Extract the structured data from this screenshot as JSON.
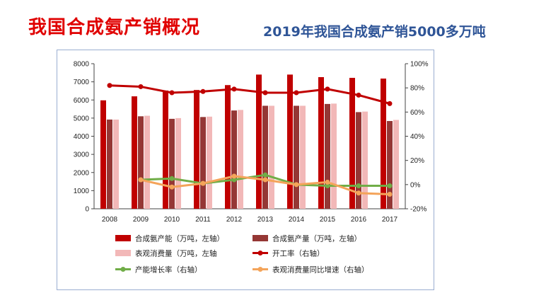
{
  "slide": {
    "title": "我国合成氨产销概况",
    "subtitle": "2019年我国合成氨产销5000多万吨"
  },
  "colors": {
    "capacity": "#c00000",
    "production": "#953735",
    "consumption": "#f2b8b8",
    "utilization": "#c00000",
    "capacity_growth": "#70ad47",
    "consumption_growth": "#f4a45a",
    "title": "#e00000",
    "subtitle": "#2f5597",
    "frame": "#9aaed1"
  },
  "chart_data": {
    "type": "bar",
    "title": "",
    "categories": [
      "2008",
      "2009",
      "2010",
      "2011",
      "2012",
      "2013",
      "2014",
      "2015",
      "2016",
      "2017"
    ],
    "y_left": {
      "min": 0,
      "max": 8000,
      "ticks": [
        "0",
        "1000",
        "2000",
        "3000",
        "4000",
        "5000",
        "6000",
        "7000",
        "8000"
      ]
    },
    "y_right": {
      "min": -20,
      "max": 100,
      "ticks": [
        "-20%",
        "0%",
        "20%",
        "40%",
        "60%",
        "80%",
        "100%"
      ]
    },
    "grid": false,
    "legend_position": "bottom",
    "series": [
      {
        "key": "capacity",
        "name": "合成氨产能（万吨，左轴）",
        "type": "bar",
        "axis": "left",
        "values": [
          5980,
          6200,
          6520,
          6550,
          6820,
          7400,
          7400,
          7260,
          7220,
          7180
        ]
      },
      {
        "key": "production",
        "name": "合成氨产量（万吨，左轴）",
        "type": "bar",
        "axis": "left",
        "values": [
          4920,
          5100,
          4960,
          5060,
          5420,
          5680,
          5680,
          5780,
          5330,
          4840
        ]
      },
      {
        "key": "consumption",
        "name": "表观消费量（万吨，左轴",
        "type": "bar",
        "axis": "left",
        "values": [
          4920,
          5130,
          5000,
          5080,
          5450,
          5680,
          5680,
          5800,
          5360,
          4900
        ]
      },
      {
        "key": "utilization",
        "name": "开工率（右轴）",
        "type": "line",
        "axis": "right",
        "values": [
          82,
          81,
          76,
          77,
          79,
          76,
          76,
          79,
          74,
          67
        ]
      },
      {
        "key": "capacity_growth",
        "name": "产能增长率（右轴）",
        "type": "line",
        "axis": "right",
        "values": [
          null,
          4,
          5,
          1,
          4,
          8,
          0,
          -1,
          -1,
          -1
        ]
      },
      {
        "key": "consumption_growth",
        "name": "表观消费量同比增速（右轴）",
        "type": "line",
        "axis": "right",
        "values": [
          null,
          4,
          -2,
          1,
          7,
          4,
          0,
          2,
          -7,
          -8
        ]
      }
    ]
  }
}
